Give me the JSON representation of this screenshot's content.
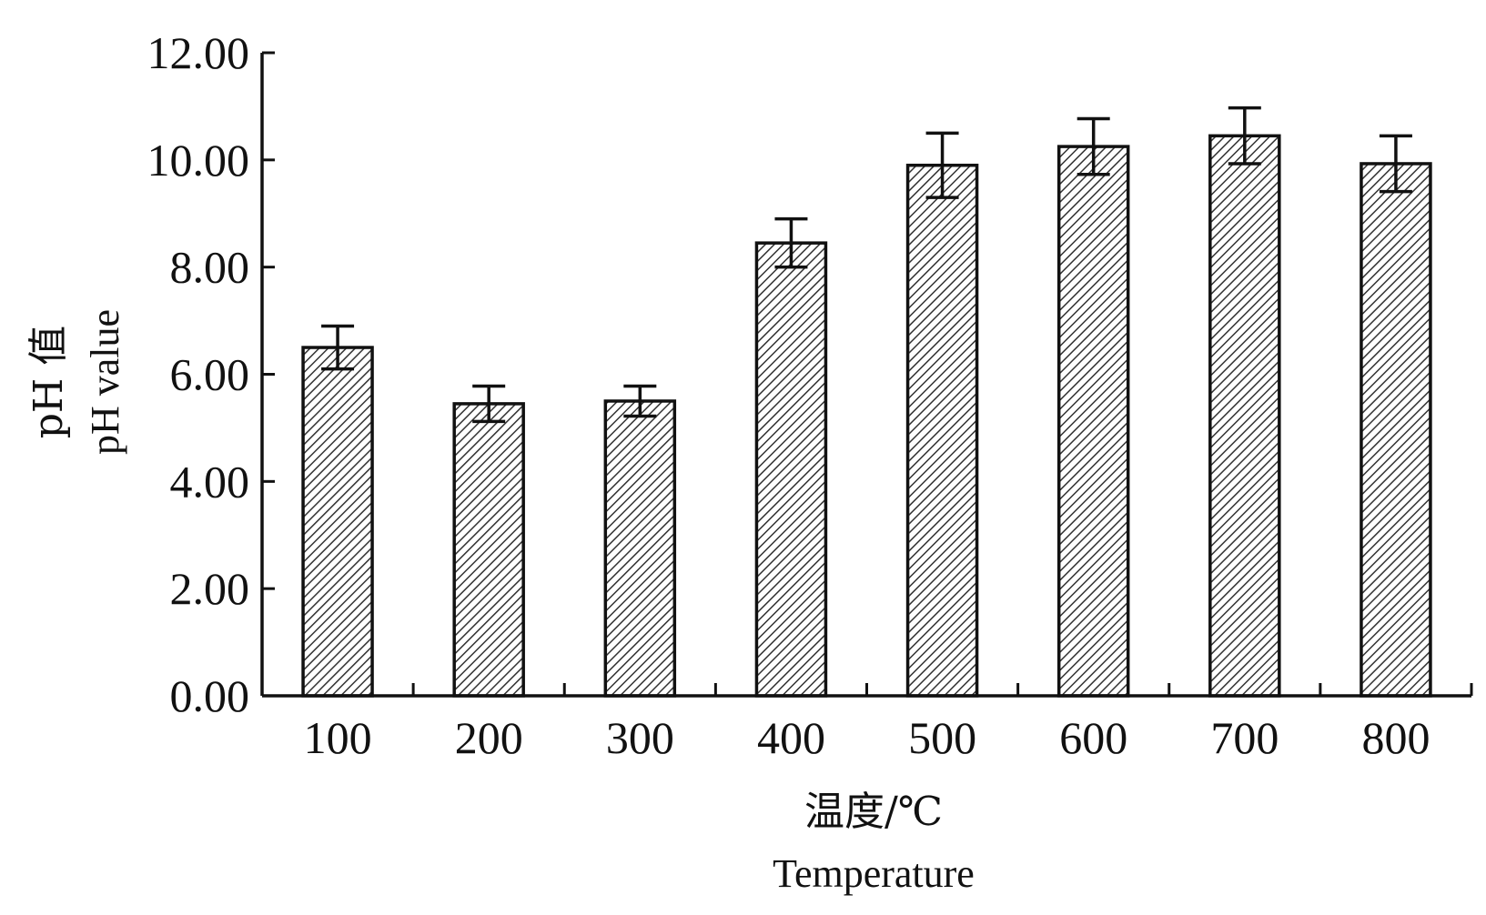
{
  "chart_data": {
    "type": "bar",
    "categories": [
      "100",
      "200",
      "300",
      "400",
      "500",
      "600",
      "700",
      "800"
    ],
    "values": [
      6.5,
      5.45,
      5.5,
      8.45,
      9.9,
      10.25,
      10.45,
      9.93
    ],
    "errors": [
      0.4,
      0.33,
      0.28,
      0.45,
      0.6,
      0.52,
      0.52,
      0.52
    ],
    "xlabel": "温度/℃",
    "xlabel_en": "Temperature",
    "ylabel": "pH 值",
    "ylabel_en": "pH value",
    "ylim": [
      0,
      12
    ],
    "yticks": [
      "0.00",
      "2.00",
      "4.00",
      "6.00",
      "8.00",
      "10.00",
      "12.00"
    ],
    "grid": false,
    "bar_fill": "hatched",
    "colors": {
      "bar_stroke": "#111111",
      "hatch": "#333333",
      "axis": "#111111"
    }
  }
}
